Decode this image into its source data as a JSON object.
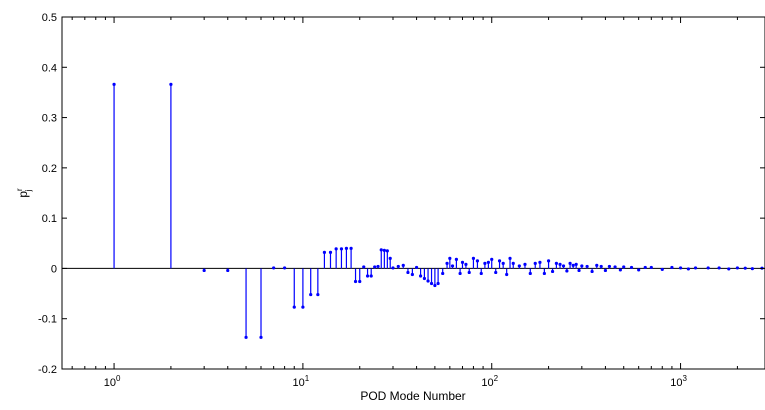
{
  "chart_data": {
    "type": "stem",
    "title": "",
    "xlabel": "POD Mode Number",
    "ylabel": {
      "base": "p",
      "sup": "r",
      "sub": "j"
    },
    "xscale": "log",
    "xlim": [
      0.53,
      2800
    ],
    "ylim": [
      -0.2,
      0.5
    ],
    "yticks": [
      -0.2,
      -0.1,
      0,
      0.1,
      0.2,
      0.3,
      0.4,
      0.5
    ],
    "ytick_labels": [
      "-0.2",
      "-0.1",
      "0",
      "0.1",
      "0.2",
      "0.3",
      "0.4",
      "0.5"
    ],
    "xticks": [
      1,
      10,
      100,
      1000
    ],
    "xtick_labels": [
      {
        "base": "10",
        "exp": "0"
      },
      {
        "base": "10",
        "exp": "1"
      },
      {
        "base": "10",
        "exp": "2"
      },
      {
        "base": "10",
        "exp": "3"
      }
    ],
    "grid": false,
    "legend": "none",
    "color": "#0000ff",
    "series": [
      {
        "x": [
          1,
          2,
          3,
          4,
          5,
          6,
          7,
          8,
          9,
          10,
          11,
          12,
          13,
          14,
          15,
          16,
          17,
          18,
          19,
          20,
          21,
          22,
          23,
          24,
          25,
          26,
          27,
          28,
          29,
          30,
          32,
          34,
          36,
          38,
          40,
          42,
          44,
          46,
          48,
          50,
          52,
          55,
          58,
          60,
          62,
          65,
          68,
          70,
          73,
          76,
          80,
          84,
          88,
          92,
          96,
          100,
          105,
          110,
          115,
          120,
          125,
          130,
          140,
          150,
          160,
          170,
          180,
          190,
          200,
          210,
          220,
          230,
          240,
          250,
          260,
          270,
          280,
          290,
          300,
          320,
          340,
          360,
          380,
          400,
          420,
          450,
          480,
          500,
          550,
          600,
          650,
          700,
          800,
          900,
          1000,
          1100,
          1200,
          1400,
          1600,
          1800,
          2000,
          2200,
          2400,
          2700
        ],
        "y": [
          0.366,
          0.366,
          -0.004,
          -0.004,
          -0.137,
          -0.137,
          0.001,
          0.001,
          -0.077,
          -0.077,
          -0.052,
          -0.052,
          0.032,
          0.032,
          0.039,
          0.039,
          0.04,
          0.04,
          -0.026,
          -0.026,
          0.003,
          -0.015,
          -0.015,
          0.003,
          0.004,
          0.037,
          0.036,
          0.035,
          0.02,
          0.001,
          0.004,
          0.006,
          -0.008,
          -0.012,
          0.002,
          -0.015,
          -0.02,
          -0.025,
          -0.03,
          -0.034,
          -0.03,
          -0.01,
          0.01,
          0.02,
          0.005,
          0.018,
          -0.01,
          0.012,
          0.008,
          -0.008,
          0.02,
          0.015,
          -0.01,
          0.01,
          0.012,
          0.018,
          -0.008,
          0.015,
          0.01,
          -0.012,
          0.02,
          0.01,
          0.005,
          0.008,
          -0.01,
          0.01,
          0.012,
          -0.01,
          0.015,
          -0.006,
          0.01,
          0.008,
          0.005,
          -0.005,
          0.01,
          0.006,
          0.008,
          -0.004,
          0.005,
          0.004,
          -0.006,
          0.006,
          0.004,
          -0.004,
          0.004,
          0.003,
          -0.003,
          0.003,
          0.002,
          -0.003,
          0.002,
          0.002,
          -0.002,
          0.002,
          0.001,
          -0.001,
          0.001,
          0.001,
          0.001,
          -0.001,
          0.001,
          0.0005,
          -0.0005,
          0.0005
        ]
      }
    ]
  }
}
